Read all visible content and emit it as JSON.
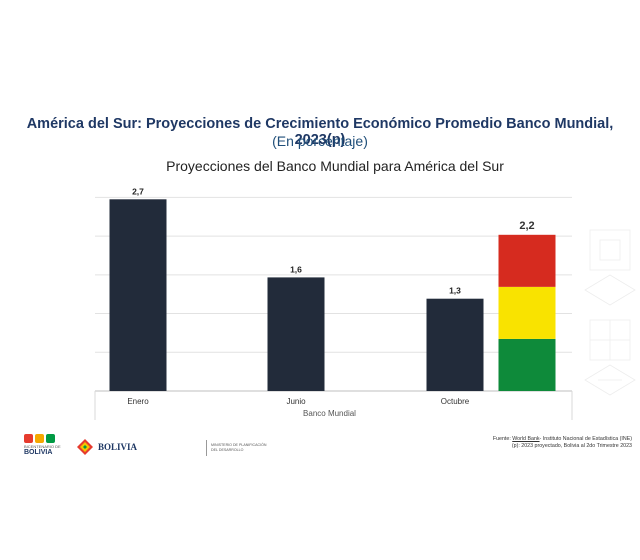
{
  "slide": {
    "title": "América del Sur: Proyecciones de Crecimiento Económico Promedio Banco Mundial, 2023(p)",
    "subtitle": "(En porcentaje)"
  },
  "chart_data": {
    "type": "bar",
    "title": "Proyecciones del Banco Mundial para América del Sur",
    "xlabel": "Banco Mundial",
    "ylabel": "",
    "ylim": [
      0,
      3.0
    ],
    "grid": true,
    "categories": [
      "Enero",
      "Junio",
      "Octubre"
    ],
    "values": [
      2.7,
      1.6,
      1.3
    ],
    "value_labels": [
      "2,7",
      "1,6",
      "1,3"
    ],
    "bar_color": "#222b3a",
    "highlight": {
      "category": "Octubre",
      "value": 2.2,
      "label": "2,2",
      "segment_colors": [
        "#0e8a3a",
        "#f9e300",
        "#d62b1f"
      ]
    }
  },
  "footer": {
    "bicentenario_small": "BICENTENARIO DE",
    "bicentenario_big": "BOLIVIA",
    "bolivia_word": "BOLIVIA",
    "ministerio": "MINISTERIO DE PLANIFICACIÓN DEL DESARROLLO",
    "source_line1_prefix": "Fuente: ",
    "source_line1_link": "World Bank",
    "source_line1_rest": "- Instituto Nacional de Estadística (INE)",
    "source_line2": "(p): 2023 proyectado, Bolivia al 2do Trimestre 2023"
  },
  "colors": {
    "title": "#1f3864",
    "gridline": "#e2e2e2"
  }
}
